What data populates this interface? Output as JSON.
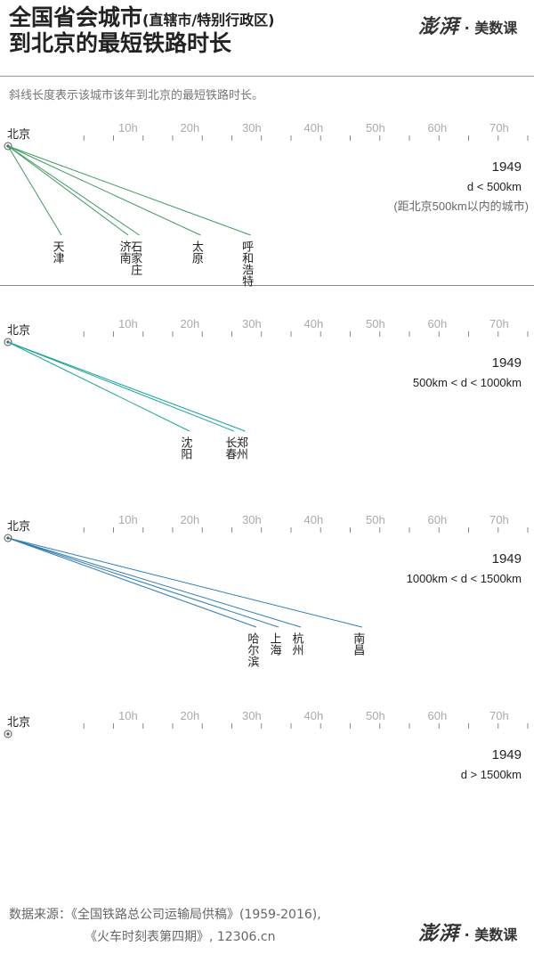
{
  "title_line1": "全国省会城市",
  "title_line1_small": "(直辖市/特别行政区)",
  "title_line2": "到北京的最短铁路时长",
  "brand": {
    "logo": "澎湃",
    "dot": "·",
    "name": "美数课"
  },
  "subtitle": "斜线长度表示该城市该年到北京的最短铁路时长。",
  "source_line1": "数据来源：《全国铁路总公司运输局供稿》(1959-2016),",
  "source_line2": "《火车时刻表第四期》, 12306.cn",
  "colors": {
    "p1": "#3a9a5c",
    "p2": "#1aa39a",
    "p3": "#2f7db4",
    "axis": "#888",
    "tick": "#aaa"
  },
  "chart_data": [
    {
      "type": "line",
      "origin_label": "北京",
      "x_ticks": [
        "10h",
        "20h",
        "30h",
        "40h",
        "50h",
        "60h",
        "70h"
      ],
      "xlim": [
        0,
        80
      ],
      "year": "1949",
      "range_label": "d < 500km",
      "note": "(距北京500km以内的城市)",
      "color": "#3a9a5c",
      "cities": [
        {
          "name": "天津",
          "hours": 8
        },
        {
          "name": "济南",
          "hours": 20
        },
        {
          "name": "石家庄",
          "hours": 22
        },
        {
          "name": "太原",
          "hours": 33
        },
        {
          "name": "呼和浩特",
          "hours": 42
        }
      ]
    },
    {
      "type": "line",
      "origin_label": "北京",
      "x_ticks": [
        "10h",
        "20h",
        "30h",
        "40h",
        "50h",
        "60h",
        "70h"
      ],
      "xlim": [
        0,
        80
      ],
      "year": "1949",
      "range_label": "500km < d < 1000km",
      "note": "",
      "color": "#1aa39a",
      "cities": [
        {
          "name": "沈阳",
          "hours": 31
        },
        {
          "name": "长春",
          "hours": 39
        },
        {
          "name": "郑州",
          "hours": 41
        }
      ]
    },
    {
      "type": "line",
      "origin_label": "北京",
      "x_ticks": [
        "10h",
        "20h",
        "30h",
        "40h",
        "50h",
        "60h",
        "70h"
      ],
      "xlim": [
        0,
        80
      ],
      "year": "1949",
      "range_label": "1000km < d < 1500km",
      "note": "",
      "color": "#2f7db4",
      "cities": [
        {
          "name": "哈尔滨",
          "hours": 43
        },
        {
          "name": "上海",
          "hours": 47
        },
        {
          "name": "杭州",
          "hours": 51
        },
        {
          "name": "南昌",
          "hours": 62
        }
      ]
    },
    {
      "type": "line",
      "origin_label": "北京",
      "x_ticks": [
        "10h",
        "20h",
        "30h",
        "40h",
        "50h",
        "60h",
        "70h"
      ],
      "xlim": [
        0,
        80
      ],
      "year": "1949",
      "range_label": "d > 1500km",
      "note": "",
      "color": "#2f7db4",
      "cities": []
    }
  ]
}
